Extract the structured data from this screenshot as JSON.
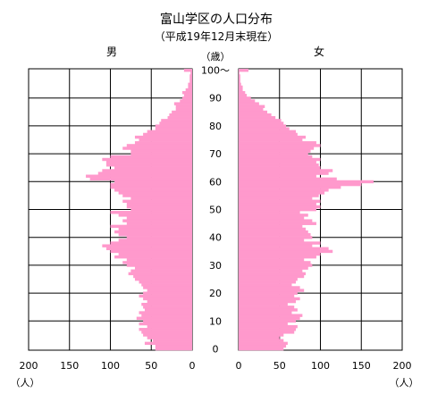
{
  "chart_data": {
    "type": "bar",
    "title": "富山学区の人口分布",
    "subtitle": "（平成19年12月末現在）",
    "unit": "（人）",
    "age_axis_label": "（歳）",
    "series": [
      {
        "name": "男",
        "color": "#ff99cc",
        "range": [
          0,
          200
        ],
        "ticks": [
          0,
          50,
          100,
          150,
          200
        ],
        "values": [
          45,
          45,
          58,
          48,
          55,
          60,
          62,
          65,
          55,
          65,
          60,
          68,
          62,
          65,
          58,
          60,
          62,
          55,
          60,
          65,
          60,
          55,
          60,
          62,
          65,
          70,
          72,
          78,
          75,
          70,
          80,
          85,
          80,
          95,
          90,
          100,
          105,
          110,
          100,
          90,
          80,
          90,
          95,
          90,
          100,
          80,
          85,
          80,
          90,
          100,
          75,
          80,
          80,
          85,
          75,
          85,
          90,
          95,
          100,
          100,
          95,
          125,
          130,
          115,
          110,
          95,
          105,
          105,
          110,
          100,
          75,
          75,
          85,
          80,
          70,
          65,
          70,
          60,
          55,
          45,
          45,
          40,
          38,
          30,
          28,
          25,
          20,
          20,
          22,
          15,
          12,
          10,
          12,
          8,
          5,
          5,
          3,
          3,
          3,
          2,
          10
        ]
      },
      {
        "name": "女",
        "color": "#ff99cc",
        "range": [
          0,
          200
        ],
        "ticks": [
          0,
          50,
          100,
          150,
          200
        ],
        "values": [
          55,
          58,
          60,
          55,
          50,
          55,
          68,
          70,
          72,
          60,
          70,
          75,
          78,
          65,
          72,
          68,
          60,
          70,
          75,
          68,
          72,
          80,
          75,
          65,
          70,
          72,
          80,
          82,
          78,
          85,
          90,
          88,
          80,
          95,
          100,
          115,
          110,
          90,
          100,
          80,
          90,
          88,
          85,
          82,
          78,
          95,
          90,
          80,
          85,
          75,
          95,
          100,
          95,
          100,
          90,
          98,
          105,
          110,
          125,
          150,
          165,
          120,
          95,
          110,
          115,
          100,
          98,
          95,
          100,
          90,
          85,
          88,
          92,
          100,
          95,
          78,
          82,
          72,
          70,
          62,
          58,
          55,
          52,
          45,
          40,
          35,
          30,
          32,
          25,
          20,
          15,
          10,
          8,
          5,
          5,
          3,
          2,
          2,
          2,
          1,
          12
        ]
      }
    ],
    "age_ticks": [
      "0",
      "10",
      "20",
      "30",
      "40",
      "50",
      "60",
      "70",
      "80",
      "90",
      "100〜"
    ],
    "age_range": [
      0,
      100
    ],
    "grid": true
  }
}
